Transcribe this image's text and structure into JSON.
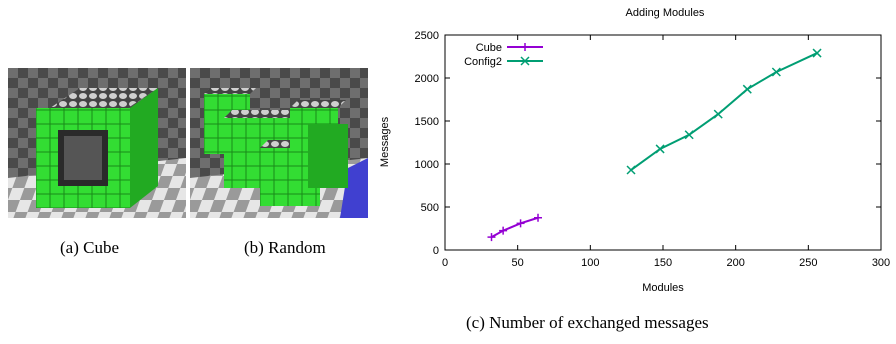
{
  "captions": {
    "a": "(a) Cube",
    "b": "(b) Random",
    "c": "(c) Number of exchanged messages"
  },
  "colors": {
    "module_green": "#33dd33",
    "cube_series": "#9400d3",
    "config2_series": "#009e73",
    "floor_light": "#e8e8e8",
    "floor_dark": "#8a8a8a",
    "blue_accent": "#4040d0"
  },
  "chart_data": {
    "type": "line",
    "title": "Adding Modules",
    "xlabel": "Modules",
    "ylabel": "Messages",
    "xlim": [
      0,
      300
    ],
    "ylim": [
      0,
      2500
    ],
    "xticks": [
      0,
      50,
      100,
      150,
      200,
      250,
      300
    ],
    "yticks": [
      0,
      500,
      1000,
      1500,
      2000,
      2500
    ],
    "legend_position": "top-left",
    "series": [
      {
        "name": "Cube",
        "marker": "+",
        "color": "#9400d3",
        "x": [
          32,
          40,
          52,
          64
        ],
        "y": [
          150,
          225,
          310,
          375
        ]
      },
      {
        "name": "Config2",
        "marker": "x",
        "color": "#009e73",
        "x": [
          128,
          148,
          168,
          188,
          208,
          228,
          256
        ],
        "y": [
          930,
          1175,
          1340,
          1580,
          1870,
          2070,
          2290
        ]
      }
    ]
  }
}
